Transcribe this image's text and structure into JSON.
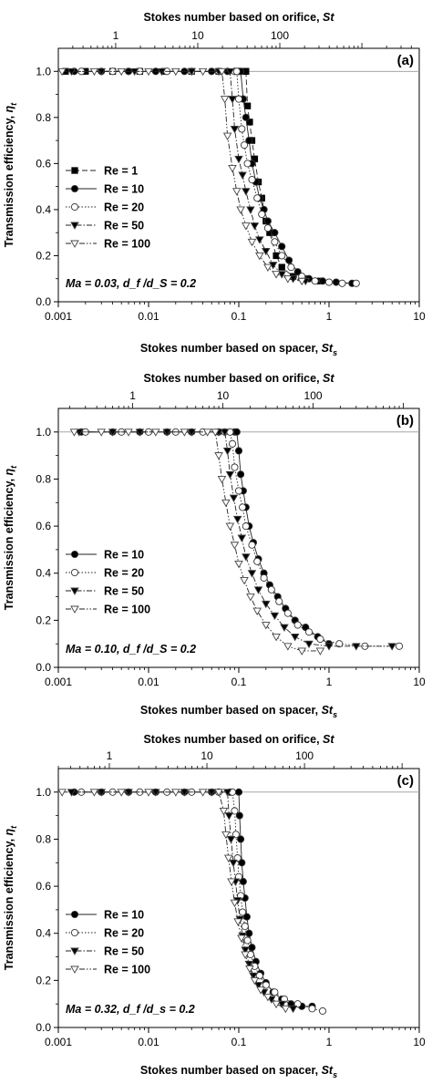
{
  "chart_data": [
    {
      "type": "line",
      "panel": "(a)",
      "xlabel": "Stokes number based on spacer, St_s",
      "x2label": "Stokes number based on orifice, St",
      "ylabel": "Transmission efficiency, η_t",
      "xscale": "log",
      "xlim": [
        0.001,
        10
      ],
      "x2lim": [
        0.2,
        5000
      ],
      "ylim": [
        0,
        1.1
      ],
      "xticks": [
        "0.001",
        "0.01",
        "0.1",
        "1",
        "10"
      ],
      "x2ticks": [
        "1",
        "10",
        "100"
      ],
      "yticks": [
        "0.0",
        "0.2",
        "0.4",
        "0.6",
        "0.8",
        "1.0"
      ],
      "reference_line": 1.0,
      "annotation": {
        "ma_text": "Ma = 0.03, d_f /d_S = 0.2"
      },
      "legend_position": "left",
      "series": [
        {
          "name": "Re = 1",
          "marker": "square-filled",
          "dash": "dash",
          "x": [
            0.0012,
            0.002,
            0.004,
            0.008,
            0.015,
            0.03,
            0.06,
            0.1,
            0.118,
            0.12,
            0.125,
            0.132,
            0.14,
            0.15,
            0.165,
            0.18,
            0.2,
            0.22,
            0.26,
            0.3,
            0.4,
            0.55,
            0.8
          ],
          "y": [
            1.0,
            1.0,
            1.0,
            1.0,
            1.0,
            1.0,
            1.0,
            1.0,
            1.0,
            1.0,
            0.85,
            0.78,
            0.7,
            0.62,
            0.52,
            0.45,
            0.35,
            0.3,
            0.2,
            0.15,
            0.11,
            0.1,
            0.09
          ]
        },
        {
          "name": "Re = 10",
          "marker": "circle-filled",
          "dash": "solid",
          "x": [
            0.0015,
            0.003,
            0.006,
            0.012,
            0.025,
            0.05,
            0.075,
            0.1,
            0.105,
            0.112,
            0.12,
            0.13,
            0.14,
            0.155,
            0.17,
            0.19,
            0.21,
            0.25,
            0.3,
            0.36,
            0.45,
            0.6,
            0.85,
            1.2,
            1.8
          ],
          "y": [
            1.0,
            1.0,
            1.0,
            1.0,
            1.0,
            1.0,
            1.0,
            1.0,
            1.0,
            0.88,
            0.8,
            0.7,
            0.6,
            0.52,
            0.45,
            0.4,
            0.35,
            0.3,
            0.24,
            0.18,
            0.13,
            0.1,
            0.09,
            0.085,
            0.08
          ]
        },
        {
          "name": "Re = 20",
          "marker": "circle-open",
          "dash": "dot",
          "x": [
            0.0018,
            0.004,
            0.008,
            0.016,
            0.03,
            0.06,
            0.09,
            0.095,
            0.1,
            0.108,
            0.115,
            0.125,
            0.14,
            0.16,
            0.18,
            0.21,
            0.25,
            0.3,
            0.38,
            0.5,
            0.7,
            1.0,
            1.4,
            2.0
          ],
          "y": [
            1.0,
            1.0,
            1.0,
            1.0,
            1.0,
            1.0,
            1.0,
            1.0,
            0.88,
            0.75,
            0.68,
            0.6,
            0.53,
            0.45,
            0.38,
            0.32,
            0.26,
            0.2,
            0.15,
            0.11,
            0.09,
            0.085,
            0.08,
            0.08
          ]
        },
        {
          "name": "Re = 50",
          "marker": "triangle-down-filled",
          "dash": "dashdot",
          "x": [
            0.0014,
            0.003,
            0.007,
            0.014,
            0.03,
            0.06,
            0.08,
            0.085,
            0.09,
            0.1,
            0.11,
            0.12,
            0.135,
            0.15,
            0.17,
            0.2,
            0.24,
            0.3,
            0.4,
            0.55
          ],
          "y": [
            1.0,
            1.0,
            1.0,
            1.0,
            1.0,
            1.0,
            1.0,
            0.88,
            0.75,
            0.62,
            0.55,
            0.48,
            0.4,
            0.33,
            0.27,
            0.22,
            0.16,
            0.12,
            0.1,
            0.09
          ]
        },
        {
          "name": "Re = 100",
          "marker": "triangle-down-open",
          "dash": "dashdotdot",
          "x": [
            0.0011,
            0.0025,
            0.005,
            0.01,
            0.02,
            0.04,
            0.065,
            0.07,
            0.075,
            0.085,
            0.095,
            0.105,
            0.12,
            0.14,
            0.17,
            0.21,
            0.26,
            0.35,
            0.5
          ],
          "y": [
            1.0,
            1.0,
            1.0,
            1.0,
            1.0,
            1.0,
            1.0,
            0.88,
            0.72,
            0.58,
            0.48,
            0.4,
            0.33,
            0.26,
            0.2,
            0.15,
            0.12,
            0.1,
            0.09
          ]
        }
      ]
    },
    {
      "type": "line",
      "panel": "(b)",
      "xlabel": "Stokes number based on spacer, St_s",
      "x2label": "Stokes number based on orifice, St",
      "ylabel": "Transmission efficiency, η_t",
      "xscale": "log",
      "xlim": [
        0.001,
        10
      ],
      "x2lim": [
        0.15,
        1500
      ],
      "ylim": [
        0,
        1.1
      ],
      "xticks": [
        "0.001",
        "0.01",
        "0.1",
        "1",
        "10"
      ],
      "x2ticks": [
        "1",
        "10",
        "100"
      ],
      "yticks": [
        "0.0",
        "0.2",
        "0.4",
        "0.6",
        "0.8",
        "1.0"
      ],
      "reference_line": 1.0,
      "annotation": {
        "ma_text": "Ma = 0.10, d_f /d_S = 0.2"
      },
      "legend_position": "left",
      "series": [
        {
          "name": "Re = 10",
          "marker": "circle-filled",
          "dash": "solid",
          "x": [
            0.0018,
            0.004,
            0.008,
            0.016,
            0.03,
            0.06,
            0.09,
            0.095,
            0.1,
            0.105,
            0.112,
            0.12,
            0.13,
            0.145,
            0.165,
            0.19,
            0.22,
            0.27,
            0.33,
            0.42,
            0.55,
            0.75,
            1.0
          ],
          "y": [
            1.0,
            1.0,
            1.0,
            1.0,
            1.0,
            1.0,
            1.0,
            1.0,
            0.92,
            0.82,
            0.75,
            0.68,
            0.6,
            0.53,
            0.46,
            0.4,
            0.35,
            0.3,
            0.25,
            0.2,
            0.17,
            0.13,
            0.1
          ]
        },
        {
          "name": "Re = 20",
          "marker": "circle-open",
          "dash": "dot",
          "x": [
            0.002,
            0.005,
            0.01,
            0.02,
            0.04,
            0.07,
            0.08,
            0.085,
            0.09,
            0.1,
            0.11,
            0.12,
            0.14,
            0.16,
            0.19,
            0.23,
            0.28,
            0.35,
            0.45,
            0.6,
            0.8,
            1.3,
            2.5,
            6.0
          ],
          "y": [
            1.0,
            1.0,
            1.0,
            1.0,
            1.0,
            1.0,
            1.0,
            0.95,
            0.85,
            0.75,
            0.68,
            0.6,
            0.52,
            0.45,
            0.38,
            0.33,
            0.28,
            0.23,
            0.18,
            0.15,
            0.12,
            0.1,
            0.09,
            0.09
          ]
        },
        {
          "name": "Re = 50",
          "marker": "triangle-down-filled",
          "dash": "dashdot",
          "x": [
            0.0017,
            0.004,
            0.008,
            0.016,
            0.03,
            0.06,
            0.07,
            0.075,
            0.08,
            0.088,
            0.097,
            0.108,
            0.12,
            0.14,
            0.165,
            0.2,
            0.25,
            0.32,
            0.42,
            0.6,
            1.0,
            2.0,
            5.0
          ],
          "y": [
            1.0,
            1.0,
            1.0,
            1.0,
            1.0,
            1.0,
            1.0,
            0.92,
            0.82,
            0.72,
            0.63,
            0.55,
            0.47,
            0.4,
            0.33,
            0.27,
            0.22,
            0.17,
            0.13,
            0.1,
            0.09,
            0.09,
            0.09
          ]
        },
        {
          "name": "Re = 100",
          "marker": "triangle-down-open",
          "dash": "dashdotdot",
          "x": [
            0.0015,
            0.003,
            0.006,
            0.012,
            0.025,
            0.045,
            0.055,
            0.06,
            0.065,
            0.072,
            0.08,
            0.09,
            0.1,
            0.115,
            0.135,
            0.16,
            0.2,
            0.26,
            0.35,
            0.5,
            0.8
          ],
          "y": [
            1.0,
            1.0,
            1.0,
            1.0,
            1.0,
            1.0,
            1.0,
            0.9,
            0.8,
            0.7,
            0.6,
            0.52,
            0.44,
            0.37,
            0.3,
            0.24,
            0.18,
            0.13,
            0.09,
            0.07,
            0.07
          ]
        }
      ]
    },
    {
      "type": "line",
      "panel": "(c)",
      "xlabel": "Stokes number based on spacer, St_s",
      "x2label": "Stokes number based on orifice, St",
      "ylabel": "Transmission efficiency, η_t",
      "xscale": "log",
      "xlim": [
        0.001,
        10
      ],
      "x2lim": [
        0.3,
        1500
      ],
      "ylim": [
        0,
        1.1
      ],
      "xticks": [
        "0.001",
        "0.01",
        "0.1",
        "1",
        "10"
      ],
      "x2ticks": [
        "1",
        "10",
        "100"
      ],
      "yticks": [
        "0.0",
        "0.2",
        "0.4",
        "0.6",
        "0.8",
        "1.0"
      ],
      "reference_line": 1.0,
      "annotation": {
        "ma_text": "Ma = 0.32, d_f /d_s = 0.2"
      },
      "legend_position": "left",
      "series": [
        {
          "name": "Re = 10",
          "marker": "circle-filled",
          "dash": "solid",
          "x": [
            0.0015,
            0.003,
            0.006,
            0.012,
            0.025,
            0.05,
            0.08,
            0.1,
            0.102,
            0.105,
            0.108,
            0.112,
            0.117,
            0.123,
            0.13,
            0.14,
            0.155,
            0.175,
            0.2,
            0.24,
            0.3,
            0.38,
            0.5,
            0.65
          ],
          "y": [
            1.0,
            1.0,
            1.0,
            1.0,
            1.0,
            1.0,
            1.0,
            1.0,
            0.9,
            0.8,
            0.7,
            0.62,
            0.55,
            0.47,
            0.4,
            0.34,
            0.28,
            0.23,
            0.19,
            0.15,
            0.12,
            0.1,
            0.09,
            0.09
          ]
        },
        {
          "name": "Re = 20",
          "marker": "circle-open",
          "dash": "dot",
          "x": [
            0.0018,
            0.004,
            0.008,
            0.016,
            0.03,
            0.06,
            0.085,
            0.09,
            0.093,
            0.097,
            0.1,
            0.105,
            0.11,
            0.117,
            0.125,
            0.135,
            0.15,
            0.17,
            0.2,
            0.25,
            0.32,
            0.45,
            0.65,
            0.85
          ],
          "y": [
            1.0,
            1.0,
            1.0,
            1.0,
            1.0,
            1.0,
            1.0,
            0.92,
            0.82,
            0.72,
            0.64,
            0.56,
            0.49,
            0.43,
            0.37,
            0.31,
            0.26,
            0.22,
            0.18,
            0.15,
            0.12,
            0.1,
            0.08,
            0.07
          ]
        },
        {
          "name": "Re = 50",
          "marker": "triangle-down-filled",
          "dash": "dashdot",
          "x": [
            0.0014,
            0.003,
            0.006,
            0.012,
            0.025,
            0.05,
            0.075,
            0.078,
            0.082,
            0.087,
            0.092,
            0.097,
            0.103,
            0.11,
            0.118,
            0.13,
            0.145,
            0.165,
            0.19,
            0.23,
            0.3,
            0.4
          ],
          "y": [
            1.0,
            1.0,
            1.0,
            1.0,
            1.0,
            1.0,
            1.0,
            0.9,
            0.8,
            0.7,
            0.62,
            0.54,
            0.46,
            0.39,
            0.33,
            0.27,
            0.22,
            0.18,
            0.15,
            0.12,
            0.1,
            0.08
          ]
        },
        {
          "name": "Re = 100",
          "marker": "triangle-down-open",
          "dash": "dashdotdot",
          "x": [
            0.0011,
            0.0025,
            0.005,
            0.01,
            0.02,
            0.04,
            0.06,
            0.068,
            0.072,
            0.077,
            0.083,
            0.09,
            0.098,
            0.107,
            0.118,
            0.132,
            0.15,
            0.175,
            0.21,
            0.26,
            0.33
          ],
          "y": [
            1.0,
            1.0,
            1.0,
            1.0,
            1.0,
            1.0,
            1.0,
            0.92,
            0.82,
            0.72,
            0.62,
            0.53,
            0.45,
            0.38,
            0.31,
            0.25,
            0.2,
            0.16,
            0.13,
            0.1,
            0.08
          ]
        }
      ]
    }
  ],
  "labels": {
    "x_title_main": "Stokes number based on spacer, ",
    "x_title_main_sym": "St",
    "x_title_main_sub": "s",
    "x_title_top": "Stokes number based on orifice, ",
    "x_title_top_sym": "St",
    "y_title": "Transmission efficiency, ",
    "y_title_sym": "η",
    "y_title_sub": "t"
  }
}
